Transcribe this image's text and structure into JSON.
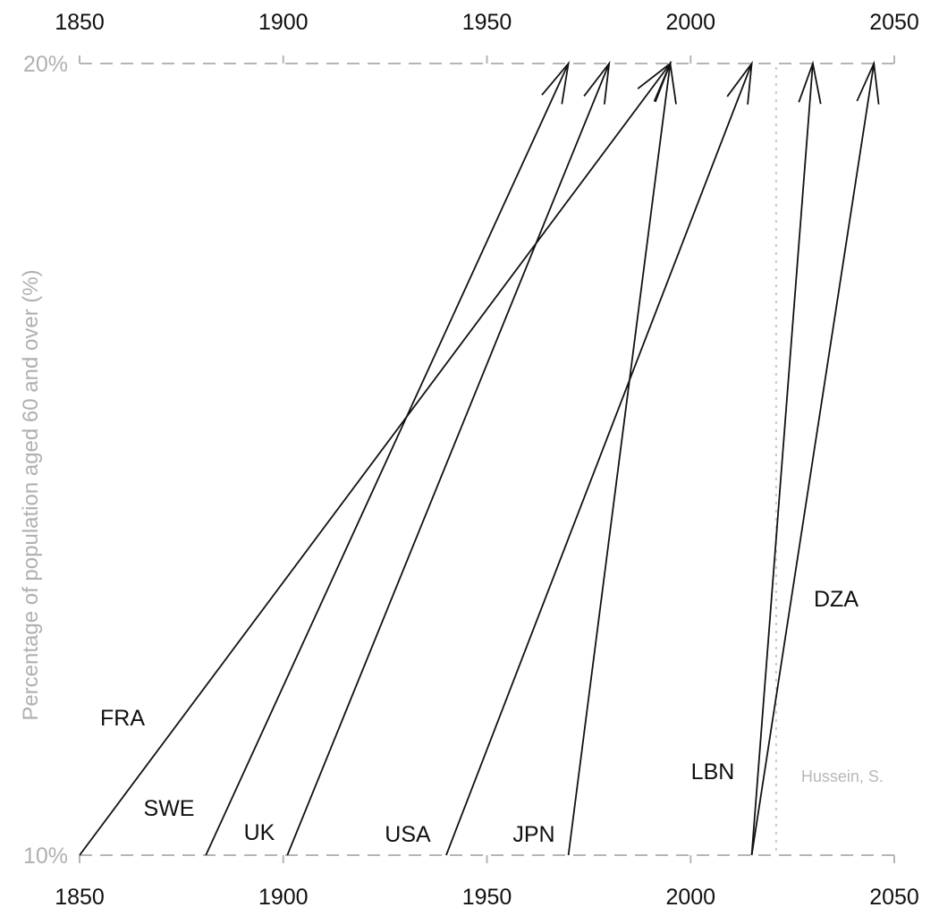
{
  "chart_data": {
    "type": "line",
    "title": "",
    "xlabel": "",
    "ylabel": "Percentage of population aged 60 and over (%)",
    "xlim": [
      1850,
      2050
    ],
    "ylim": [
      10,
      20
    ],
    "x_ticks": [
      1850,
      1900,
      1950,
      2000,
      2050
    ],
    "x_tick_labels": [
      "1850",
      "1900",
      "1950",
      "2000",
      "2050"
    ],
    "y_ticks": [
      10,
      20
    ],
    "y_tick_labels": [
      "10%",
      "20%"
    ],
    "grid": false,
    "reference_line_x": 2021,
    "credit": "Hussein, S.",
    "series": [
      {
        "name": "FRA",
        "start_year": 1850,
        "end_year": 1995,
        "from_pct": 10,
        "to_pct": 20
      },
      {
        "name": "SWE",
        "start_year": 1881,
        "end_year": 1970,
        "from_pct": 10,
        "to_pct": 20
      },
      {
        "name": "UK",
        "start_year": 1901,
        "end_year": 1980,
        "from_pct": 10,
        "to_pct": 20
      },
      {
        "name": "USA",
        "start_year": 1940,
        "end_year": 2015,
        "from_pct": 10,
        "to_pct": 20
      },
      {
        "name": "JPN",
        "start_year": 1970,
        "end_year": 1995,
        "from_pct": 10,
        "to_pct": 20
      },
      {
        "name": "LBN",
        "start_year": 2015,
        "end_year": 2030,
        "from_pct": 10,
        "to_pct": 20
      },
      {
        "name": "DZA",
        "start_year": 2015,
        "end_year": 2045,
        "from_pct": 10,
        "to_pct": 20
      }
    ]
  }
}
